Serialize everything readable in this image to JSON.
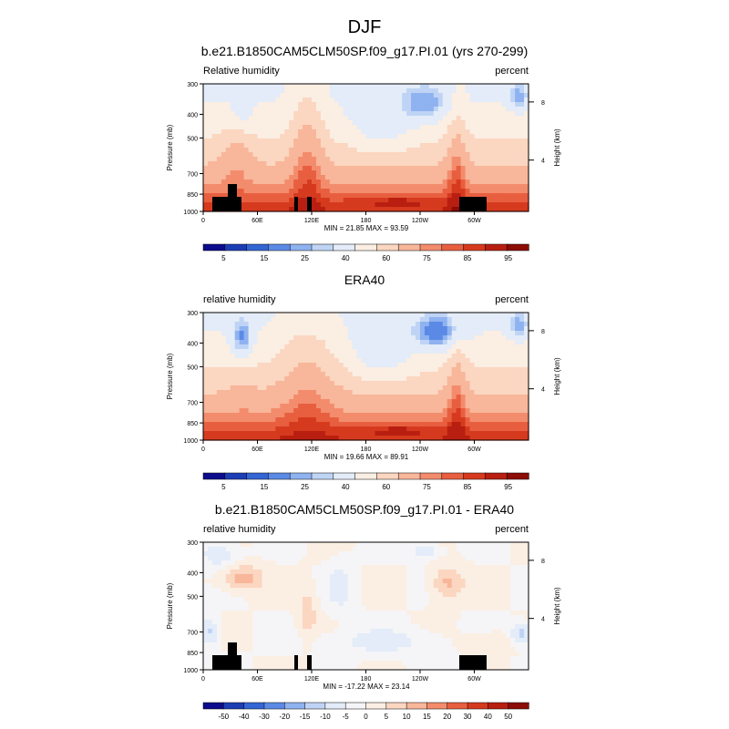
{
  "page_title": "DJF",
  "chart_data": [
    {
      "type": "heatmap",
      "title": "b.e21.B1850CAM5CLM50SP.f09_g17.PI.01 (yrs 270-299)",
      "left_label": "Relative humidity",
      "right_label": "percent",
      "ylabel": "Pressure (mb)",
      "ylabel_right": "Height (km)",
      "x_ticks": [
        "0",
        "60E",
        "120E",
        "180",
        "120W",
        "60W"
      ],
      "y_ticks": [
        "300",
        "400",
        "500",
        "700",
        "850",
        "1000"
      ],
      "y_ticks_right": [
        "8",
        "4"
      ],
      "minmax": "MIN = 21.85  MAX = 93.59",
      "colorbar": {
        "labels": [
          "5",
          "15",
          "25",
          "40",
          "60",
          "75",
          "85",
          "95"
        ],
        "colors": [
          "#0d0c8c",
          "#1c3eb5",
          "#3366d4",
          "#5b8ae6",
          "#8fb2f0",
          "#bfd4f5",
          "#e3ecf8",
          "#fbeee3",
          "#fbd6c0",
          "#f8b69a",
          "#f38c6c",
          "#e85f40",
          "#d63a1e",
          "#b81f10",
          "#8c0c06"
        ]
      },
      "field": "model"
    },
    {
      "type": "heatmap",
      "title": "ERA40",
      "left_label": "relative humidity",
      "right_label": "percent",
      "ylabel": "Pressure (mb)",
      "ylabel_right": "Height (km)",
      "x_ticks": [
        "0",
        "60E",
        "120E",
        "180",
        "120W",
        "60W"
      ],
      "y_ticks": [
        "300",
        "400",
        "500",
        "700",
        "850",
        "1000"
      ],
      "y_ticks_right": [
        "8",
        "4"
      ],
      "minmax": "MIN = 19.66  MAX = 89.91",
      "colorbar": {
        "labels": [
          "5",
          "15",
          "25",
          "40",
          "60",
          "75",
          "85",
          "95"
        ],
        "colors": [
          "#0d0c8c",
          "#1c3eb5",
          "#3366d4",
          "#5b8ae6",
          "#8fb2f0",
          "#bfd4f5",
          "#e3ecf8",
          "#fbeee3",
          "#fbd6c0",
          "#f8b69a",
          "#f38c6c",
          "#e85f40",
          "#d63a1e",
          "#b81f10",
          "#8c0c06"
        ]
      },
      "field": "obs"
    },
    {
      "type": "heatmap",
      "title": "b.e21.B1850CAM5CLM50SP.f09_g17.PI.01 - ERA40",
      "left_label": "relative humidity",
      "right_label": "percent",
      "ylabel": "Pressure (mb)",
      "ylabel_right": "Height (km)",
      "x_ticks": [
        "0",
        "60E",
        "120E",
        "180",
        "120W",
        "60W"
      ],
      "y_ticks": [
        "300",
        "400",
        "500",
        "700",
        "850",
        "1000"
      ],
      "y_ticks_right": [
        "8",
        "4"
      ],
      "minmax": "MIN = -17.22  MAX = 23.14",
      "colorbar": {
        "labels": [
          "-50",
          "-40",
          "-30",
          "-20",
          "-15",
          "-10",
          "-5",
          "0",
          "5",
          "10",
          "15",
          "20",
          "30",
          "40",
          "50"
        ],
        "colors": [
          "#0d0c8c",
          "#1c3eb5",
          "#3366d4",
          "#5b8ae6",
          "#8fb2f0",
          "#bfd4f5",
          "#e3ecf8",
          "#f5f5f8",
          "#fbeee3",
          "#fbd6c0",
          "#f8b69a",
          "#f38c6c",
          "#e85f40",
          "#d63a1e",
          "#b81f10",
          "#8c0c06"
        ]
      },
      "field": "diff"
    }
  ]
}
